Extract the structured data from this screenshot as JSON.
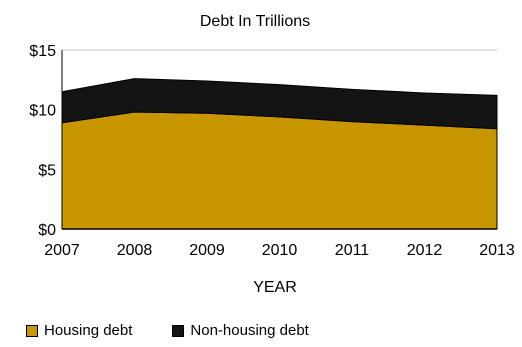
{
  "chart_data": {
    "type": "area",
    "stacked": true,
    "title": "Debt In Trillions",
    "xlabel": "YEAR",
    "ylabel": "",
    "x": [
      "2007",
      "2008",
      "2009",
      "2010",
      "2011",
      "2012",
      "2013"
    ],
    "ylim": [
      0,
      15
    ],
    "y_ticks": [
      "$0",
      "$5",
      "$10",
      "$15"
    ],
    "grid": "horizontal",
    "legend_position": "bottom-left",
    "series": [
      {
        "name": "Housing debt",
        "color": "#c89600",
        "values": [
          8.9,
          9.8,
          9.7,
          9.4,
          9.0,
          8.7,
          8.4
        ]
      },
      {
        "name": "Non-housing debt",
        "color": "#141414",
        "values": [
          2.6,
          2.8,
          2.7,
          2.7,
          2.7,
          2.7,
          2.8
        ]
      }
    ]
  }
}
